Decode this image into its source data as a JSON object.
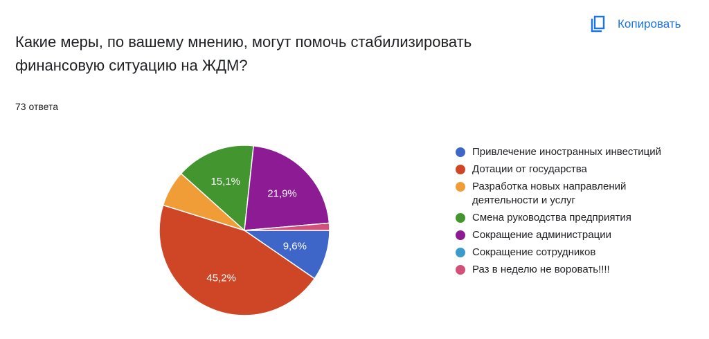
{
  "header": {
    "title": "Какие меры, по вашему мнению, могут помочь стабилизировать финансовую ситуацию на ЖДМ?",
    "response_count": "73 ответа",
    "copy_label": "Копировать",
    "copy_icon": "copy-icon"
  },
  "chart_data": {
    "type": "pie",
    "title": "Какие меры, по вашему мнению, могут помочь стабилизировать финансовую ситуацию на ЖДМ?",
    "legend_position": "right",
    "slices": [
      {
        "label": "Привлечение иностранных инвестиций",
        "value": 7,
        "percent_label": "9,6%",
        "color": "#3e66c9"
      },
      {
        "label": "Дотации от государства",
        "value": 33,
        "percent_label": "45,2%",
        "color": "#cf4626"
      },
      {
        "label": "Разработка новых направлений деятельности и услуг",
        "value": 5,
        "percent_label": "",
        "color": "#f09d38"
      },
      {
        "label": "Смена руководства предприятия",
        "value": 11,
        "percent_label": "15,1%",
        "color": "#43962f"
      },
      {
        "label": "Сокращение администрации",
        "value": 16,
        "percent_label": "21,9%",
        "color": "#8c1b94"
      },
      {
        "label": "Сокращение сотрудников",
        "value": 0,
        "percent_label": "",
        "color": "#3b9ccb"
      },
      {
        "label": "Раз в неделю не воровать!!!!",
        "value": 1,
        "percent_label": "",
        "color": "#d2507a"
      }
    ]
  }
}
